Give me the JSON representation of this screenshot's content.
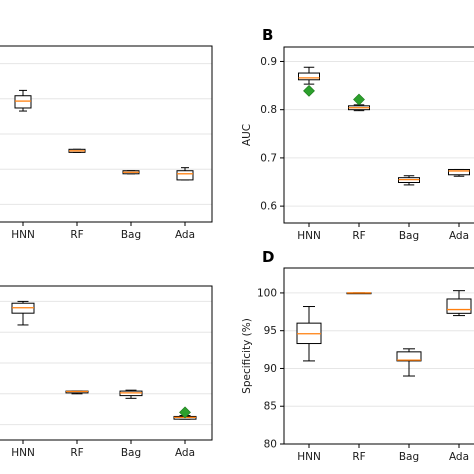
{
  "colors": {
    "median": "#ff7f0e",
    "mean_marker": "#2ca02c",
    "box_fill": "#ffffff",
    "box_edge": "#000000",
    "grid": "#e6e6e6"
  },
  "chart_data": [
    {
      "panel_label": "",
      "type": "box",
      "categories": [
        "HNN",
        "RF",
        "Bag",
        "Ada"
      ],
      "ylabel": "",
      "yticks": [],
      "grid": true,
      "boxes": [
        {
          "whislo": 0.8625,
          "q1": 0.8645,
          "med": 0.869,
          "q3": 0.8725,
          "whishi": 0.876
        },
        {
          "whislo": 0.8355,
          "q1": 0.8355,
          "med": 0.8365,
          "q3": 0.8375,
          "whishi": 0.8375
        },
        {
          "whislo": 0.8215,
          "q1": 0.8215,
          "med": 0.8225,
          "q3": 0.8235,
          "whishi": 0.8235
        },
        {
          "whislo": 0.8175,
          "q1": 0.8175,
          "med": 0.8215,
          "q3": 0.8235,
          "whishi": 0.8255
        }
      ],
      "means": [],
      "ylim": [
        0.79,
        0.905
      ]
    },
    {
      "panel_label": "B",
      "type": "box",
      "categories": [
        "HNN",
        "RF",
        "Bag",
        "Ada"
      ],
      "ylabel": "AUC",
      "yticks": [
        "0.6",
        "0.7",
        "0.8",
        "0.9"
      ],
      "grid": true,
      "boxes": [
        {
          "whislo": 0.853,
          "q1": 0.862,
          "med": 0.866,
          "q3": 0.876,
          "whishi": 0.888
        },
        {
          "whislo": 0.798,
          "q1": 0.8,
          "med": 0.804,
          "q3": 0.808,
          "whishi": 0.81
        },
        {
          "whislo": 0.644,
          "q1": 0.649,
          "med": 0.655,
          "q3": 0.659,
          "whishi": 0.663
        },
        {
          "whislo": 0.662,
          "q1": 0.665,
          "med": 0.673,
          "q3": 0.676,
          "whishi": 0.676
        }
      ],
      "means": [
        0.839,
        0.821,
        null,
        null
      ],
      "ylim": [
        0.565,
        0.93
      ]
    },
    {
      "panel_label": "",
      "type": "box",
      "categories": [
        "HNN",
        "RF",
        "Bag",
        "Ada"
      ],
      "ylabel": "",
      "yticks": [],
      "grid": true,
      "boxes": [
        {
          "whislo": 0.932,
          "q1": 0.945,
          "med": 0.951,
          "q3": 0.956,
          "whishi": 0.958
        },
        {
          "whislo": 0.856,
          "q1": 0.857,
          "med": 0.8585,
          "q3": 0.859,
          "whishi": 0.859
        },
        {
          "whislo": 0.851,
          "q1": 0.854,
          "med": 0.857,
          "q3": 0.859,
          "whishi": 0.86
        },
        {
          "whislo": 0.828,
          "q1": 0.828,
          "med": 0.83,
          "q3": 0.831,
          "whishi": 0.832
        }
      ],
      "means": [
        null,
        null,
        null,
        0.8355
      ],
      "ylim": [
        0.805,
        0.975
      ]
    },
    {
      "panel_label": "D",
      "type": "box",
      "categories": [
        "HNN",
        "RF",
        "Bag",
        "Ada"
      ],
      "ylabel": "Specificity (%)",
      "yticks": [
        "80",
        "85",
        "90",
        "95",
        "100"
      ],
      "grid": true,
      "boxes": [
        {
          "whislo": 91.0,
          "q1": 93.3,
          "med": 94.6,
          "q3": 96.0,
          "whishi": 98.2
        },
        {
          "whislo": 100.0,
          "q1": 100.0,
          "med": 100.0,
          "q3": 100.0,
          "whishi": 100.0
        },
        {
          "whislo": 89.0,
          "q1": 91.0,
          "med": 91.1,
          "q3": 92.2,
          "whishi": 92.6
        },
        {
          "whislo": 97.0,
          "q1": 97.3,
          "med": 97.8,
          "q3": 99.2,
          "whishi": 100.3
        }
      ],
      "means": [
        null,
        null,
        null,
        null
      ],
      "ylim": [
        80,
        103.3
      ]
    }
  ]
}
